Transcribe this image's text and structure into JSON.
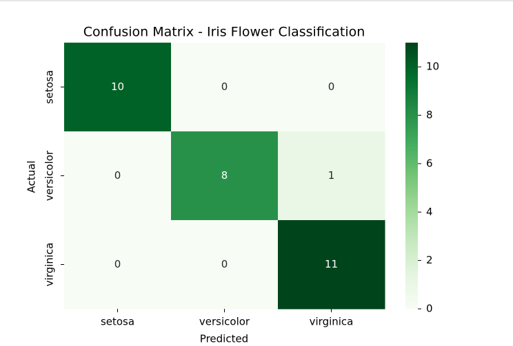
{
  "chart_data": {
    "type": "heatmap",
    "title": "Confusion Matrix - Iris Flower Classification",
    "xlabel": "Predicted",
    "ylabel": "Actual",
    "x": [
      "setosa",
      "versicolor",
      "virginica"
    ],
    "y": [
      "setosa",
      "versicolor",
      "virginica"
    ],
    "values": [
      [
        10,
        0,
        0
      ],
      [
        0,
        8,
        1
      ],
      [
        0,
        0,
        11
      ]
    ],
    "colormap": "Greens",
    "clim": [
      0,
      11
    ],
    "cticks": [
      0,
      2,
      4,
      6,
      8,
      10
    ]
  }
}
